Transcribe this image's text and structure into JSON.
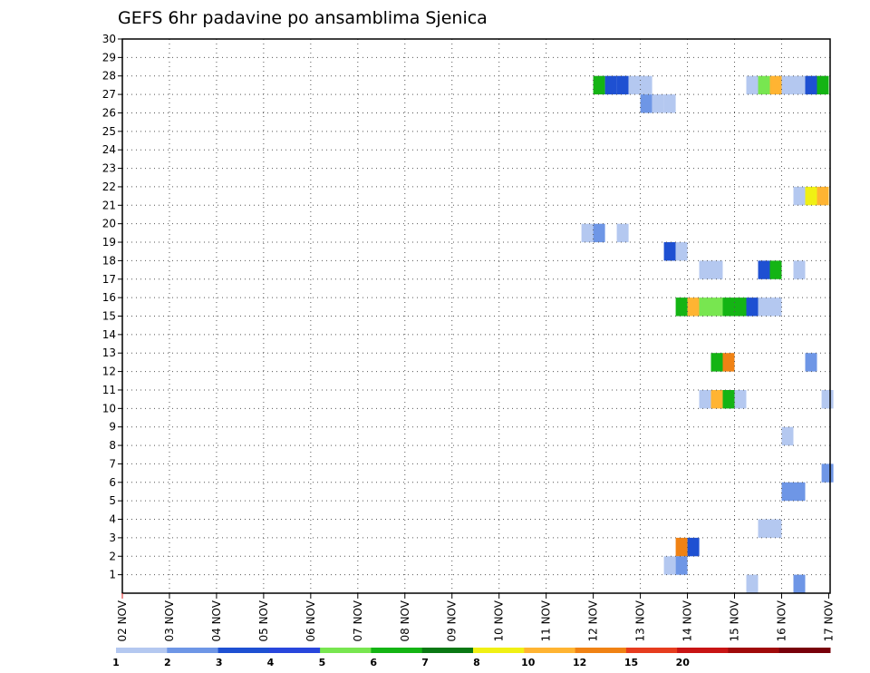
{
  "chart_data": {
    "type": "heatmap",
    "title": "GEFS 6hr padavine po ansamblima Sjenica",
    "xlabel": "",
    "ylabel": "",
    "x_tick_labels": [
      "02 NOV",
      "03 NOV",
      "04 NOV",
      "05 NOV",
      "06 NOV",
      "07 NOV",
      "08 NOV",
      "09 NOV",
      "10 NOV",
      "11 NOV",
      "12 NOV",
      "13 NOV",
      "14 NOV",
      "15 NOV",
      "16 NOV",
      "17 NOV"
    ],
    "xlim_days": [
      2,
      17
    ],
    "y_tick_labels": [
      "1",
      "2",
      "3",
      "4",
      "5",
      "6",
      "7",
      "8",
      "9",
      "10",
      "11",
      "12",
      "13",
      "14",
      "15",
      "16",
      "17",
      "18",
      "19",
      "20",
      "21",
      "22",
      "23",
      "24",
      "25",
      "26",
      "27",
      "28",
      "29",
      "30"
    ],
    "ylim": [
      0,
      30
    ],
    "grid": true,
    "legend": {
      "placement": "bottom",
      "colors": [
        "#b4c8f0",
        "#6e96e6",
        "#1e50d2",
        "#2846dc",
        "#78e650",
        "#14b414",
        "#0a7814",
        "#f0f014",
        "#ffb432",
        "#f08214",
        "#e63c1e",
        "#c81414",
        "#a00a0a",
        "#78000a"
      ],
      "labels": [
        "1",
        "2",
        "3",
        "4",
        "5",
        "6",
        "7",
        "8",
        "10",
        "12",
        "15",
        "20"
      ]
    },
    "series_description": "member (y) vs time (x, day-of-November); each cell = 6hr precipitation bin",
    "cells": [
      {
        "y": 28,
        "x": 12.0,
        "c": "#14b414"
      },
      {
        "y": 28,
        "x": 12.25,
        "c": "#1e50d2"
      },
      {
        "y": 28,
        "x": 12.5,
        "c": "#1e50d2"
      },
      {
        "y": 28,
        "x": 12.75,
        "c": "#b4c8f0"
      },
      {
        "y": 28,
        "x": 13.0,
        "c": "#b4c8f0"
      },
      {
        "y": 28,
        "x": 15.25,
        "c": "#b4c8f0"
      },
      {
        "y": 28,
        "x": 15.5,
        "c": "#78e650"
      },
      {
        "y": 28,
        "x": 15.75,
        "c": "#ffb432"
      },
      {
        "y": 28,
        "x": 16.0,
        "c": "#b4c8f0"
      },
      {
        "y": 28,
        "x": 16.25,
        "c": "#b4c8f0"
      },
      {
        "y": 28,
        "x": 16.5,
        "c": "#1e50d2"
      },
      {
        "y": 28,
        "x": 16.75,
        "c": "#14b414"
      },
      {
        "y": 27,
        "x": 13.0,
        "c": "#6e96e6"
      },
      {
        "y": 27,
        "x": 13.25,
        "c": "#b4c8f0"
      },
      {
        "y": 27,
        "x": 13.5,
        "c": "#b4c8f0"
      },
      {
        "y": 22,
        "x": 16.25,
        "c": "#b4c8f0"
      },
      {
        "y": 22,
        "x": 16.5,
        "c": "#f0f014"
      },
      {
        "y": 22,
        "x": 16.75,
        "c": "#ffb432"
      },
      {
        "y": 20,
        "x": 11.75,
        "c": "#b4c8f0"
      },
      {
        "y": 20,
        "x": 12.0,
        "c": "#6e96e6"
      },
      {
        "y": 20,
        "x": 12.5,
        "c": "#b4c8f0"
      },
      {
        "y": 19,
        "x": 13.5,
        "c": "#1e50d2"
      },
      {
        "y": 19,
        "x": 13.75,
        "c": "#b4c8f0"
      },
      {
        "y": 18,
        "x": 15.5,
        "c": "#1e50d2"
      },
      {
        "y": 18,
        "x": 15.75,
        "c": "#14b414"
      },
      {
        "y": 18,
        "x": 14.25,
        "c": "#b4c8f0"
      },
      {
        "y": 18,
        "x": 14.5,
        "c": "#b4c8f0"
      },
      {
        "y": 18,
        "x": 16.25,
        "c": "#b4c8f0"
      },
      {
        "y": 16,
        "x": 13.75,
        "c": "#14b414"
      },
      {
        "y": 16,
        "x": 14.0,
        "c": "#ffb432"
      },
      {
        "y": 16,
        "x": 14.25,
        "c": "#78e650"
      },
      {
        "y": 16,
        "x": 14.5,
        "c": "#78e650"
      },
      {
        "y": 16,
        "x": 14.75,
        "c": "#14b414"
      },
      {
        "y": 16,
        "x": 15.0,
        "c": "#14b414"
      },
      {
        "y": 16,
        "x": 15.25,
        "c": "#1e50d2"
      },
      {
        "y": 16,
        "x": 15.5,
        "c": "#b4c8f0"
      },
      {
        "y": 16,
        "x": 15.75,
        "c": "#b4c8f0"
      },
      {
        "y": 13,
        "x": 14.5,
        "c": "#14b414"
      },
      {
        "y": 13,
        "x": 14.75,
        "c": "#f08214"
      },
      {
        "y": 13,
        "x": 16.5,
        "c": "#6e96e6"
      },
      {
        "y": 11,
        "x": 14.25,
        "c": "#b4c8f0"
      },
      {
        "y": 11,
        "x": 14.5,
        "c": "#ffb432"
      },
      {
        "y": 11,
        "x": 14.75,
        "c": "#14b414"
      },
      {
        "y": 11,
        "x": 15.0,
        "c": "#b4c8f0"
      },
      {
        "y": 11,
        "x": 16.85,
        "c": "#b4c8f0"
      },
      {
        "y": 9,
        "x": 16.0,
        "c": "#b4c8f0"
      },
      {
        "y": 7,
        "x": 16.85,
        "c": "#6e96e6"
      },
      {
        "y": 6,
        "x": 16.0,
        "c": "#6e96e6"
      },
      {
        "y": 6,
        "x": 16.25,
        "c": "#6e96e6"
      },
      {
        "y": 4,
        "x": 15.5,
        "c": "#b4c8f0"
      },
      {
        "y": 4,
        "x": 15.75,
        "c": "#b4c8f0"
      },
      {
        "y": 3,
        "x": 13.75,
        "c": "#f08214"
      },
      {
        "y": 3,
        "x": 14.0,
        "c": "#1e50d2"
      },
      {
        "y": 2,
        "x": 13.5,
        "c": "#b4c8f0"
      },
      {
        "y": 2,
        "x": 13.75,
        "c": "#6e96e6"
      },
      {
        "y": 1,
        "x": 15.25,
        "c": "#b4c8f0"
      },
      {
        "y": 1,
        "x": 16.25,
        "c": "#6e96e6"
      }
    ]
  }
}
